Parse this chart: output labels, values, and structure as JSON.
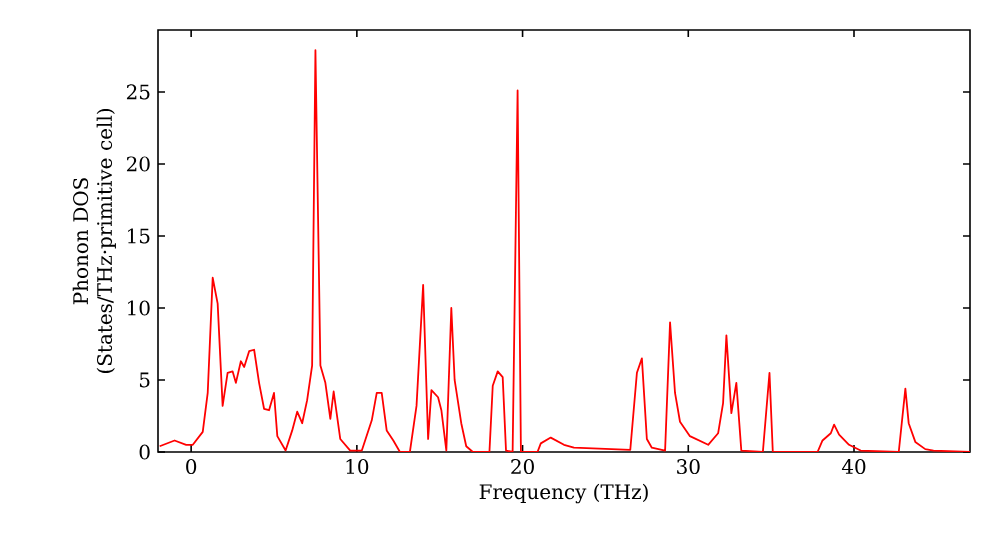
{
  "chart_data": {
    "type": "line",
    "xlabel": "Frequency (THz)",
    "ylabel": "Phonon DOS (States/THz·primitive cell)",
    "xlim": [
      -2,
      47
    ],
    "ylim": [
      0,
      29.3
    ],
    "xticks": [
      0,
      10,
      20,
      30,
      40
    ],
    "yticks": [
      0,
      5,
      10,
      15,
      20,
      25
    ],
    "grid": false,
    "series": [
      {
        "color": "#ff0000",
        "x": [
          -1.9,
          -1.0,
          -0.3,
          0.1,
          0.7,
          1.0,
          1.3,
          1.6,
          1.9,
          2.2,
          2.5,
          2.7,
          3.0,
          3.2,
          3.5,
          3.8,
          4.1,
          4.4,
          4.7,
          5.0,
          5.2,
          5.7,
          6.1,
          6.4,
          6.7,
          7.0,
          7.3,
          7.5,
          7.8,
          8.1,
          8.4,
          8.6,
          9.0,
          9.6,
          10.3,
          10.9,
          11.2,
          11.5,
          11.8,
          12.2,
          12.6,
          13.2,
          13.6,
          14.0,
          14.3,
          14.5,
          14.9,
          15.1,
          15.4,
          15.7,
          15.9,
          16.3,
          16.6,
          17.0,
          18.0,
          18.2,
          18.5,
          18.8,
          19.0,
          19.4,
          19.7,
          19.9,
          20.9,
          21.1,
          21.7,
          22.5,
          23.1,
          26.5,
          26.9,
          27.2,
          27.5,
          27.8,
          28.6,
          28.9,
          29.2,
          29.5,
          30.1,
          31.2,
          31.8,
          32.1,
          32.3,
          32.6,
          32.9,
          33.2,
          34.5,
          34.9,
          35.1,
          37.8,
          38.1,
          38.6,
          38.8,
          39.1,
          39.7,
          40.4,
          42.7,
          43.1,
          43.3,
          43.7,
          44.3,
          44.8,
          47
        ],
        "values": [
          0.4,
          0.8,
          0.5,
          0.5,
          1.4,
          4.1,
          12.1,
          10.3,
          3.2,
          5.5,
          5.6,
          4.8,
          6.3,
          5.9,
          7.0,
          7.1,
          4.8,
          3.0,
          2.9,
          4.1,
          1.1,
          0.1,
          1.5,
          2.8,
          2.0,
          3.6,
          6.0,
          27.9,
          6.0,
          4.8,
          2.3,
          4.2,
          0.9,
          0.1,
          0.1,
          2.2,
          4.1,
          4.1,
          1.5,
          0.8,
          0,
          0,
          3.2,
          11.6,
          0.9,
          4.3,
          3.8,
          2.9,
          0.1,
          10.0,
          5.0,
          2.0,
          0.4,
          0,
          0,
          4.6,
          5.6,
          5.2,
          0.1,
          0,
          25.1,
          0,
          0,
          0.6,
          1.0,
          0.5,
          0.3,
          0.15,
          5.5,
          6.5,
          0.9,
          0.3,
          0.1,
          9.0,
          4.1,
          2.1,
          1.1,
          0.5,
          1.3,
          3.4,
          8.1,
          2.7,
          4.8,
          0.1,
          0,
          5.5,
          0,
          0,
          0.8,
          1.3,
          1.9,
          1.2,
          0.5,
          0.1,
          0,
          4.4,
          2.0,
          0.7,
          0.2,
          0.1,
          0
        ]
      }
    ]
  }
}
